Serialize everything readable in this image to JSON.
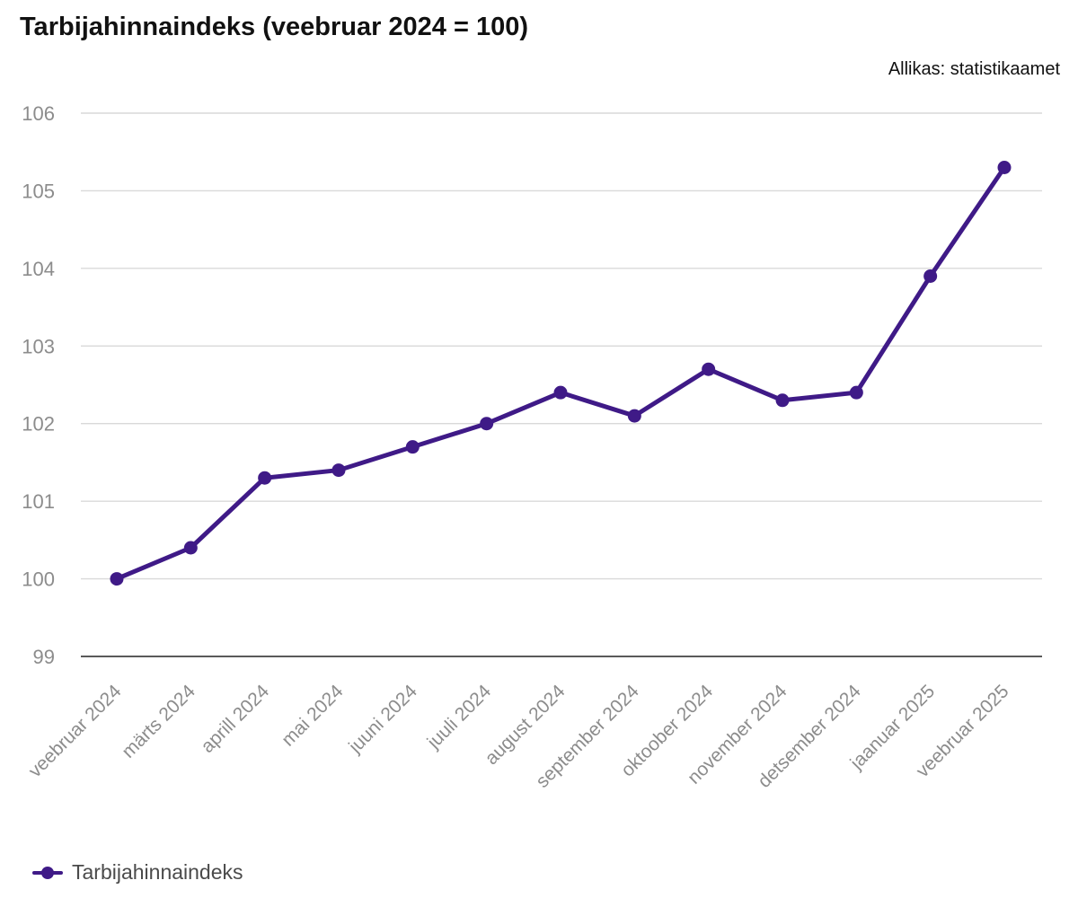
{
  "header": {
    "title": "Tarbijahinnaindeks (veebruar 2024 = 100)",
    "source": "Allikas: statistikaamet"
  },
  "chart_data": {
    "type": "line",
    "title": "Tarbijahinnaindeks (veebruar 2024 = 100)",
    "source": "Allikas: statistikaamet",
    "categories": [
      "veebruar 2024",
      "märts 2024",
      "aprill 2024",
      "mai 2024",
      "juuni 2024",
      "juuli 2024",
      "august 2024",
      "september 2024",
      "oktoober 2024",
      "november 2024",
      "detsember 2024",
      "jaanuar 2025",
      "veebruar 2025"
    ],
    "series": [
      {
        "name": "Tarbijahinnaindeks",
        "color": "#3f1a87",
        "values": [
          100.0,
          100.4,
          101.3,
          101.4,
          101.7,
          102.0,
          102.4,
          102.1,
          102.7,
          102.3,
          102.4,
          103.9,
          105.3
        ]
      }
    ],
    "ylim": [
      99,
      106
    ],
    "yticks": [
      99,
      100,
      101,
      102,
      103,
      104,
      105,
      106
    ],
    "grid": true,
    "legend": "bottom-left",
    "xlabel": "",
    "ylabel": ""
  }
}
